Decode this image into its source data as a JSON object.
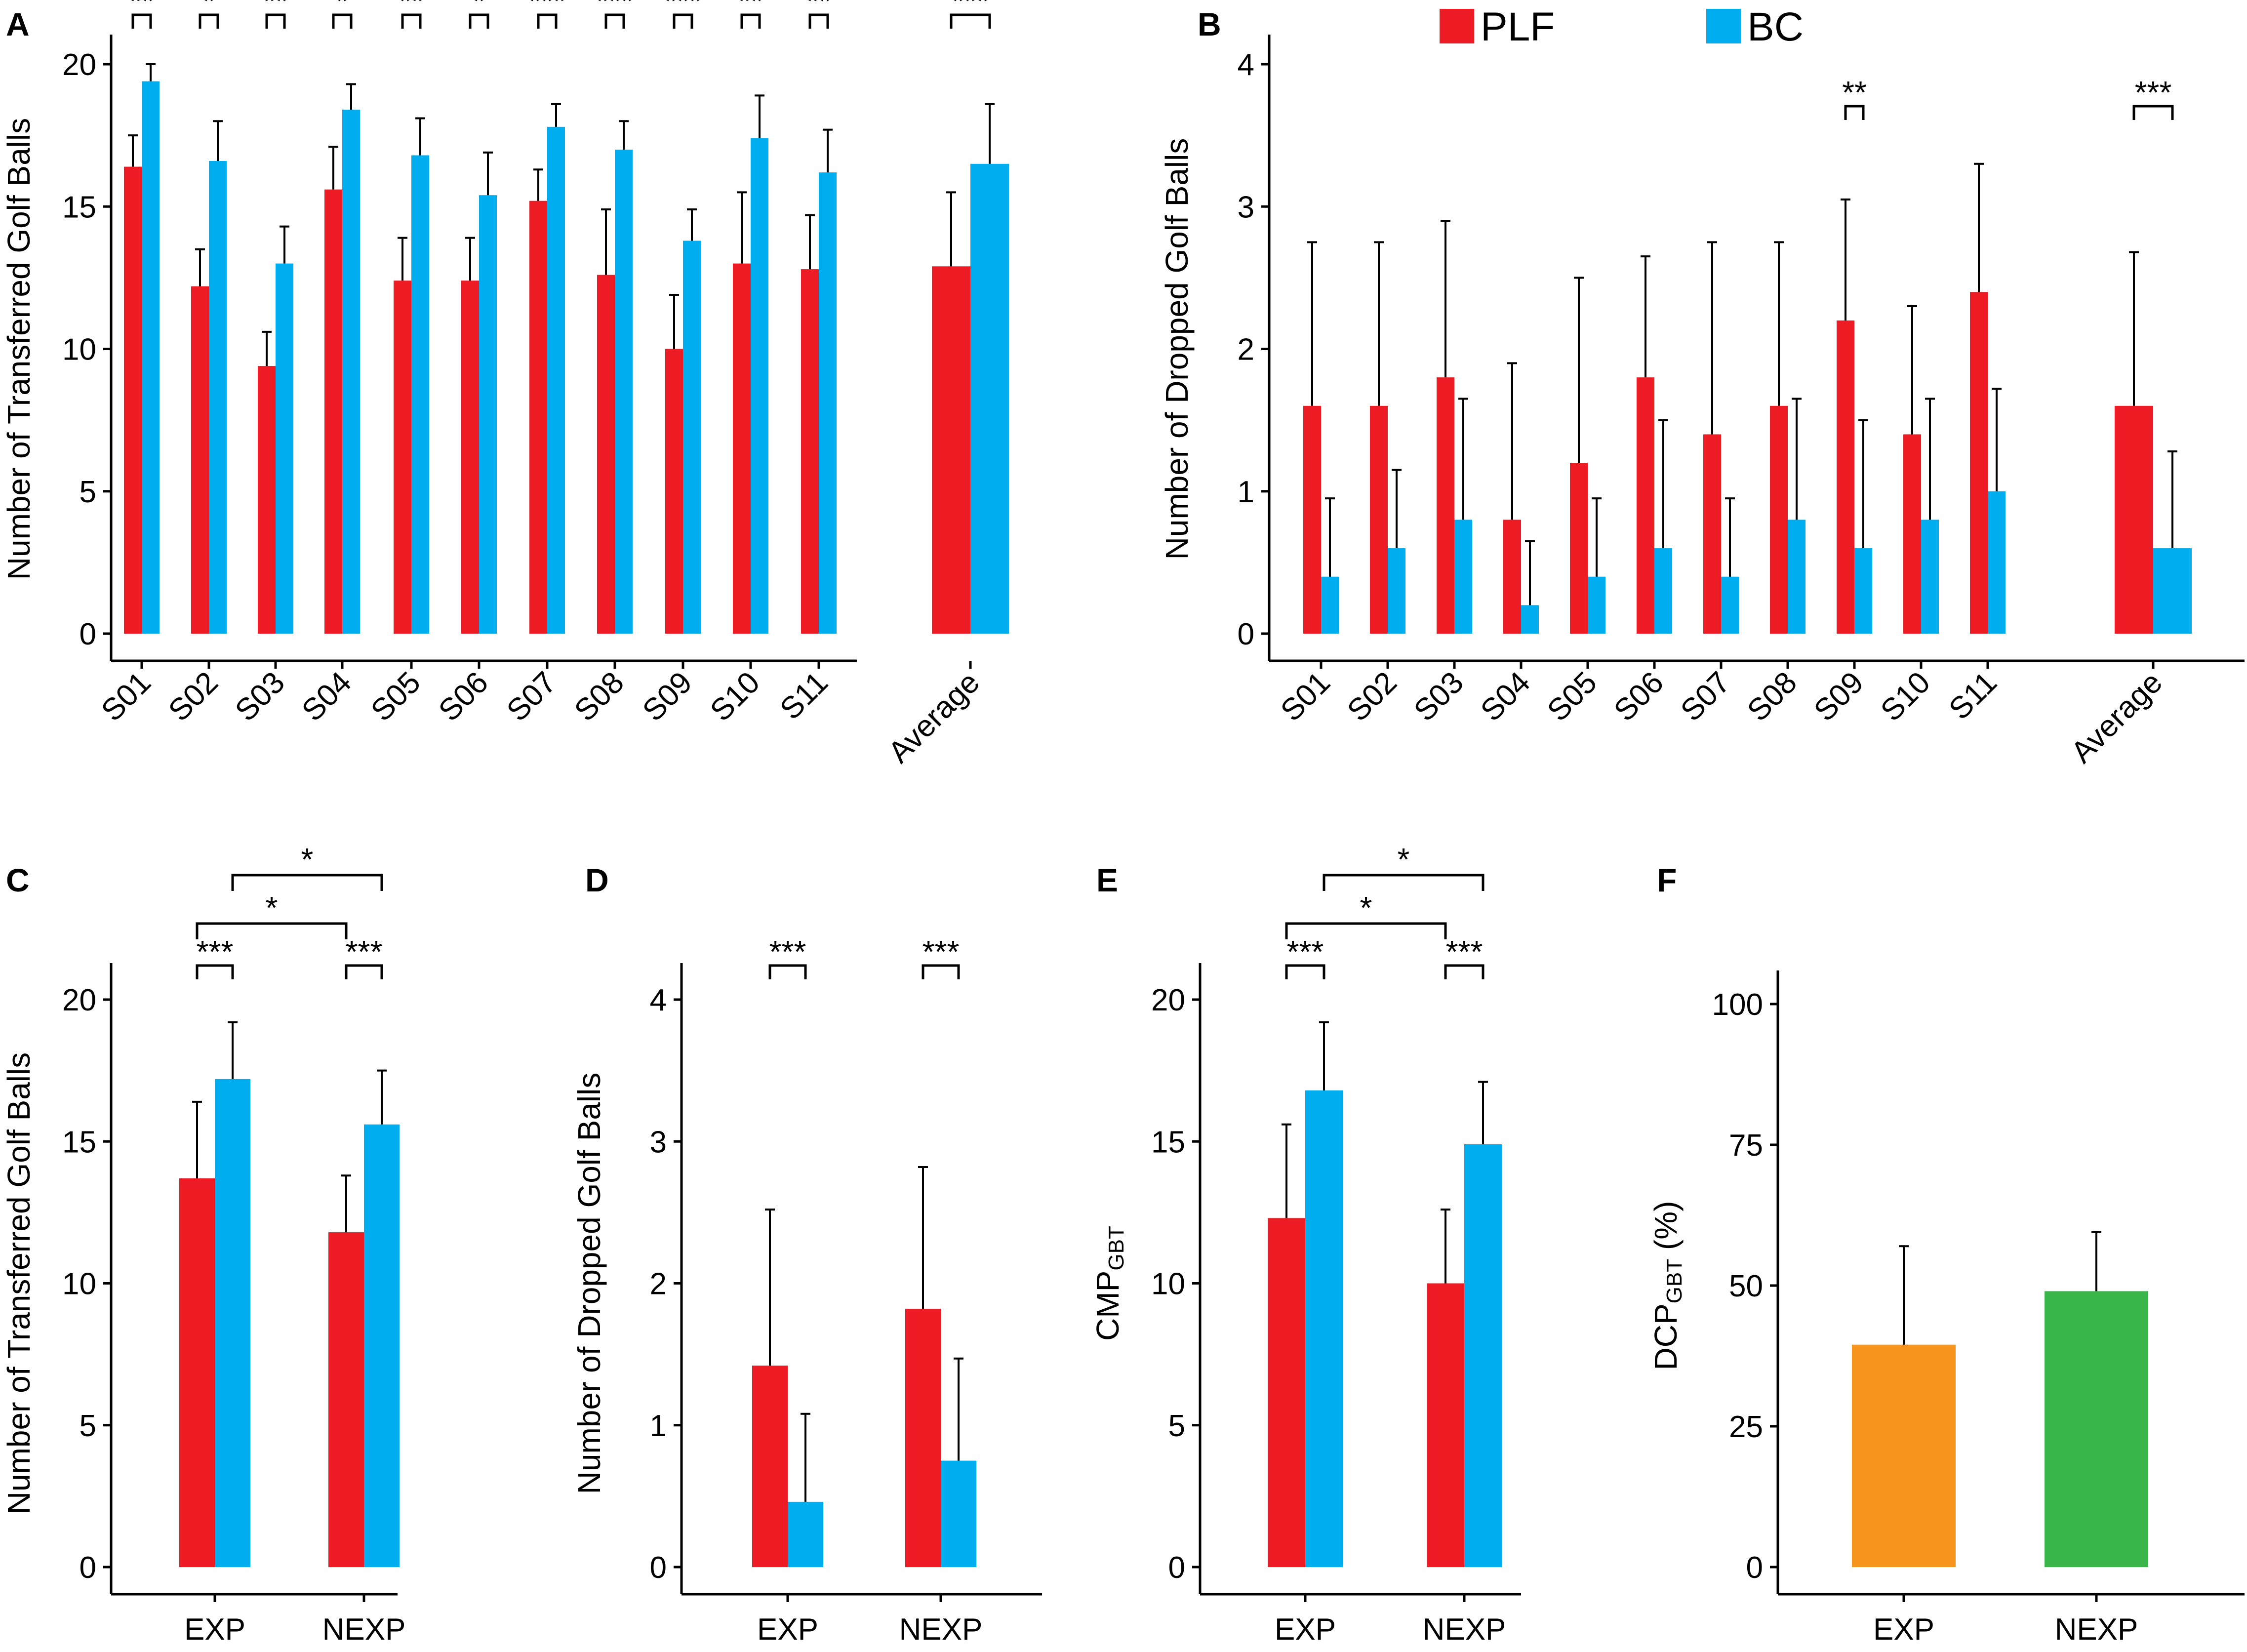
{
  "colors": {
    "plf": "#ED1C24",
    "bc": "#00AEEF",
    "exp_dcp": "#F7941D",
    "nexp_dcp": "#39B54A",
    "line": "#000000"
  },
  "legend": {
    "plf": "PLF",
    "bc": "BC"
  },
  "chart_data": [
    {
      "id": "A",
      "letter": "A",
      "type": "bar",
      "ylabel": "Number of Transferred Golf Balls",
      "ylim": [
        0,
        21
      ],
      "yticks": [
        0,
        5,
        10,
        15,
        20
      ],
      "categories": [
        "S01",
        "S02",
        "S03",
        "S04",
        "S05",
        "S06",
        "S07",
        "S08",
        "S09",
        "S10",
        "S11",
        "Average"
      ],
      "series": [
        {
          "name": "PLF",
          "values": [
            16.4,
            12.2,
            9.4,
            15.6,
            12.4,
            12.4,
            15.2,
            12.6,
            10.0,
            13.0,
            12.8,
            12.9
          ],
          "errors": [
            1.1,
            1.3,
            1.2,
            1.5,
            1.5,
            1.5,
            1.1,
            2.3,
            1.9,
            2.5,
            1.9,
            2.6
          ]
        },
        {
          "name": "BC",
          "values": [
            19.4,
            16.6,
            13.0,
            18.4,
            16.8,
            15.4,
            17.8,
            17.0,
            13.8,
            17.4,
            16.2,
            16.5
          ],
          "errors": [
            0.6,
            1.4,
            1.3,
            0.9,
            1.3,
            1.5,
            0.8,
            1.0,
            1.1,
            1.5,
            1.5,
            2.1
          ]
        }
      ],
      "significance": [
        {
          "category": "S01",
          "label": "**"
        },
        {
          "category": "S02",
          "label": "*"
        },
        {
          "category": "S03",
          "label": "**"
        },
        {
          "category": "S04",
          "label": "*"
        },
        {
          "category": "S05",
          "label": "**"
        },
        {
          "category": "S06",
          "label": "*"
        },
        {
          "category": "S07",
          "label": "***"
        },
        {
          "category": "S08",
          "label": "***"
        },
        {
          "category": "S09",
          "label": "***"
        },
        {
          "category": "S10",
          "label": "**"
        },
        {
          "category": "S11",
          "label": "**"
        },
        {
          "category": "Average",
          "label": "***"
        }
      ]
    },
    {
      "id": "B",
      "letter": "B",
      "type": "bar",
      "ylabel": "Number of Dropped Golf Balls",
      "ylim": [
        0,
        4.2
      ],
      "yticks": [
        0,
        1,
        2,
        3,
        4
      ],
      "categories": [
        "S01",
        "S02",
        "S03",
        "S04",
        "S05",
        "S06",
        "S07",
        "S08",
        "S09",
        "S10",
        "S11",
        "Average"
      ],
      "series": [
        {
          "name": "PLF",
          "values": [
            1.6,
            1.6,
            1.8,
            0.8,
            1.2,
            1.8,
            1.4,
            1.6,
            2.2,
            1.4,
            2.4,
            1.6
          ],
          "errors": [
            1.15,
            1.15,
            1.1,
            1.1,
            1.3,
            0.85,
            1.35,
            1.15,
            0.85,
            0.9,
            0.9,
            1.08
          ]
        },
        {
          "name": "BC",
          "values": [
            0.4,
            0.6,
            0.8,
            0.2,
            0.4,
            0.6,
            0.4,
            0.8,
            0.6,
            0.8,
            1.0,
            0.6
          ],
          "errors": [
            0.55,
            0.55,
            0.85,
            0.45,
            0.55,
            0.9,
            0.55,
            0.85,
            0.9,
            0.85,
            0.72,
            0.68
          ]
        }
      ],
      "significance": [
        {
          "category": "S09",
          "label": "**"
        },
        {
          "category": "Average",
          "label": "***"
        }
      ]
    },
    {
      "id": "C",
      "letter": "C",
      "type": "bar",
      "ylabel": "Number of Transferred Golf Balls",
      "ylim": [
        0,
        21
      ],
      "yticks": [
        0,
        5,
        10,
        15,
        20
      ],
      "categories": [
        "EXP",
        "NEXP"
      ],
      "series": [
        {
          "name": "PLF",
          "values": [
            13.7,
            11.8
          ],
          "errors": [
            2.7,
            2.0
          ]
        },
        {
          "name": "BC",
          "values": [
            17.2,
            15.6
          ],
          "errors": [
            2.0,
            1.9
          ]
        }
      ],
      "significance": [
        {
          "category": "EXP",
          "label": "***"
        },
        {
          "category": "NEXP",
          "label": "***"
        }
      ],
      "comparisons": [
        {
          "label": "*",
          "from": "EXP-PLF",
          "to": "NEXP-PLF"
        },
        {
          "label": "*",
          "from": "EXP-BC",
          "to": "NEXP-BC"
        }
      ]
    },
    {
      "id": "D",
      "letter": "D",
      "type": "bar",
      "ylabel": "Number of Dropped Golf Balls",
      "ylim": [
        0,
        4.2
      ],
      "yticks": [
        0,
        1,
        2,
        3,
        4
      ],
      "categories": [
        "EXP",
        "NEXP"
      ],
      "series": [
        {
          "name": "PLF",
          "values": [
            1.42,
            1.82
          ],
          "errors": [
            1.1,
            1.0
          ]
        },
        {
          "name": "BC",
          "values": [
            0.46,
            0.75
          ],
          "errors": [
            0.62,
            0.72
          ]
        }
      ],
      "significance": [
        {
          "category": "EXP",
          "label": "***"
        },
        {
          "category": "NEXP",
          "label": "***"
        }
      ]
    },
    {
      "id": "E",
      "letter": "E",
      "type": "bar",
      "ylabel": "CMP",
      "ylabel_sub": "GBT",
      "ylim": [
        0,
        21
      ],
      "yticks": [
        0,
        5,
        10,
        15,
        20
      ],
      "categories": [
        "EXP",
        "NEXP"
      ],
      "series": [
        {
          "name": "PLF",
          "values": [
            12.3,
            10.0
          ],
          "errors": [
            3.3,
            2.6
          ]
        },
        {
          "name": "BC",
          "values": [
            16.8,
            14.9
          ],
          "errors": [
            2.4,
            2.2
          ]
        }
      ],
      "significance": [
        {
          "category": "EXP",
          "label": "***"
        },
        {
          "category": "NEXP",
          "label": "***"
        }
      ],
      "comparisons": [
        {
          "label": "*",
          "from": "EXP-PLF",
          "to": "NEXP-PLF"
        },
        {
          "label": "*",
          "from": "EXP-BC",
          "to": "NEXP-BC"
        }
      ]
    },
    {
      "id": "F",
      "letter": "F",
      "type": "bar",
      "ylabel": "DCP",
      "ylabel_sub": "GBT",
      "ylabel_suffix": " (%)",
      "ylim": [
        0,
        105
      ],
      "yticks": [
        0,
        25,
        50,
        75,
        100
      ],
      "categories": [
        "EXP",
        "NEXP"
      ],
      "series": [
        {
          "name": "DCP",
          "values": [
            39.5,
            49.0
          ],
          "errors": [
            17.5,
            10.5
          ]
        }
      ]
    }
  ]
}
